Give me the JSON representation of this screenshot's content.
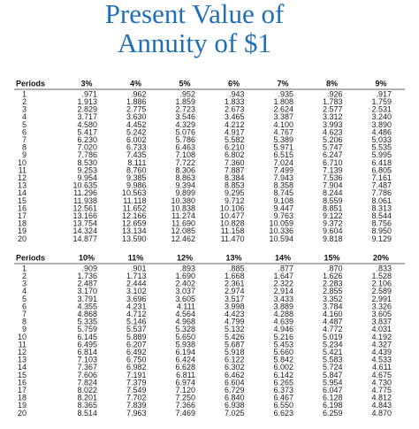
{
  "title": [
    "Present Value of",
    "Annuity of $1"
  ],
  "tables": [
    {
      "header": [
        "Periods",
        "3%",
        "4%",
        "5%",
        "6%",
        "7%",
        "8%",
        "9%"
      ],
      "rows": [
        [
          "1",
          ".971",
          ".962",
          ".952",
          ".943",
          ".935",
          ".926",
          ".917"
        ],
        [
          "2",
          "1.913",
          "1.886",
          "1.859",
          "1.833",
          "1.808",
          "1.783",
          "1.759"
        ],
        [
          "3",
          "2.829",
          "2.775",
          "2.723",
          "2.673",
          "2.624",
          "2.577",
          "2.531"
        ],
        [
          "4",
          "3.717",
          "3.630",
          "3.546",
          "3.465",
          "3.387",
          "3.312",
          "3.240"
        ],
        [
          "5",
          "4.580",
          "4.452",
          "4.329",
          "4.212",
          "4.100",
          "3.993",
          "3.890"
        ],
        [
          "6",
          "5.417",
          "5.242",
          "5.076",
          "4.917",
          "4.767",
          "4.623",
          "4.486"
        ],
        [
          "7",
          "6.230",
          "6.002",
          "5.786",
          "5.582",
          "5.389",
          "5.206",
          "5.033"
        ],
        [
          "8",
          "7.020",
          "6.733",
          "6.463",
          "6.210",
          "5.971",
          "5.747",
          "5.535"
        ],
        [
          "9",
          "7.786",
          "7.435",
          "7.108",
          "6.802",
          "6.515",
          "6.247",
          "5.995"
        ],
        [
          "10",
          "8.530",
          "8.111",
          "7.722",
          "7.360",
          "7.024",
          "6.710",
          "6.418"
        ],
        [
          "11",
          "9.253",
          "8.760",
          "8.306",
          "7.887",
          "7.499",
          "7.139",
          "6.805"
        ],
        [
          "12",
          "9.954",
          "9.385",
          "8.863",
          "8.384",
          "7.943",
          "7.536",
          "7.161"
        ],
        [
          "13",
          "10.635",
          "9.986",
          "9.394",
          "8.853",
          "8.358",
          "7.904",
          "7.487"
        ],
        [
          "14",
          "11.296",
          "10.563",
          "9.899",
          "9.295",
          "8.745",
          "8.244",
          "7.786"
        ],
        [
          "15",
          "11.938",
          "11.118",
          "10.380",
          "9.712",
          "9.108",
          "8.559",
          "8.061"
        ],
        [
          "16",
          "12.561",
          "11.652",
          "10.838",
          "10.106",
          "9.447",
          "8.851",
          "8.313"
        ],
        [
          "17",
          "13.166",
          "12.166",
          "11.274",
          "10.477",
          "9.763",
          "9.122",
          "8.544"
        ],
        [
          "18",
          "13.754",
          "12.659",
          "11.690",
          "10.828",
          "10.059",
          "9.372",
          "8.756"
        ],
        [
          "19",
          "14.324",
          "13.134",
          "12.085",
          "11.158",
          "10.336",
          "9.604",
          "8.950"
        ],
        [
          "20",
          "14.877",
          "13.590",
          "12.462",
          "11.470",
          "10.594",
          "9.818",
          "9.129"
        ]
      ]
    },
    {
      "header": [
        "Periods",
        "10%",
        "11%",
        "12%",
        "13%",
        "14%",
        "15%",
        "20%"
      ],
      "rows": [
        [
          "1",
          ".909",
          ".901",
          ".893",
          ".885",
          ".877",
          ".870",
          ".833"
        ],
        [
          "2",
          "1.736",
          "1.713",
          "1.690",
          "1.668",
          "1.647",
          "1.626",
          "1.528"
        ],
        [
          "3",
          "2.487",
          "2.444",
          "2.402",
          "2.361",
          "2.322",
          "2.283",
          "2.106"
        ],
        [
          "4",
          "3.170",
          "3.102",
          "3.037",
          "2.974",
          "2.914",
          "2.855",
          "2.589"
        ],
        [
          "5",
          "3.791",
          "3.696",
          "3.605",
          "3.517",
          "3.433",
          "3.352",
          "2.991"
        ],
        [
          "6",
          "4.355",
          "4.231",
          "4.111",
          "3.998",
          "3.889",
          "3.784",
          "3.326"
        ],
        [
          "7",
          "4.868",
          "4.712",
          "4.564",
          "4.423",
          "4.288",
          "4.160",
          "3.605"
        ],
        [
          "8",
          "5.335",
          "5.146",
          "4.968",
          "4.799",
          "4.639",
          "4.487",
          "3.837"
        ],
        [
          "9",
          "5.759",
          "5.537",
          "5.328",
          "5.132",
          "4.946",
          "4.772",
          "4.031"
        ],
        [
          "10",
          "6.145",
          "5.889",
          "5.650",
          "5.426",
          "5.216",
          "5.019",
          "4.192"
        ],
        [
          "11",
          "6.495",
          "6.207",
          "5.938",
          "5.687",
          "5.453",
          "5.234",
          "4.327"
        ],
        [
          "12",
          "6.814",
          "6.492",
          "6.194",
          "5.918",
          "5.660",
          "5.421",
          "4.439"
        ],
        [
          "13",
          "7.103",
          "6.750",
          "6.424",
          "6.122",
          "5.842",
          "5.583",
          "4.533"
        ],
        [
          "14",
          "7.367",
          "6.982",
          "6.628",
          "6.302",
          "6.002",
          "5.724",
          "4.611"
        ],
        [
          "15",
          "7.606",
          "7.191",
          "6.811",
          "6.462",
          "6.142",
          "5.847",
          "4.675"
        ],
        [
          "16",
          "7.824",
          "7.379",
          "6.974",
          "6.604",
          "6.265",
          "5.954",
          "4.730"
        ],
        [
          "17",
          "8.022",
          "7.549",
          "7.120",
          "6.729",
          "6.373",
          "6.047",
          "4.775"
        ],
        [
          "18",
          "8.201",
          "7.702",
          "7.250",
          "6.840",
          "6.467",
          "6.128",
          "4.812"
        ],
        [
          "19",
          "8.365",
          "7.839",
          "7.366",
          "6.938",
          "6.550",
          "6.198",
          "4.843"
        ],
        [
          "20",
          "8.514",
          "7.963",
          "7.469",
          "7.025",
          "6.623",
          "6.259",
          "4.870"
        ]
      ]
    }
  ]
}
